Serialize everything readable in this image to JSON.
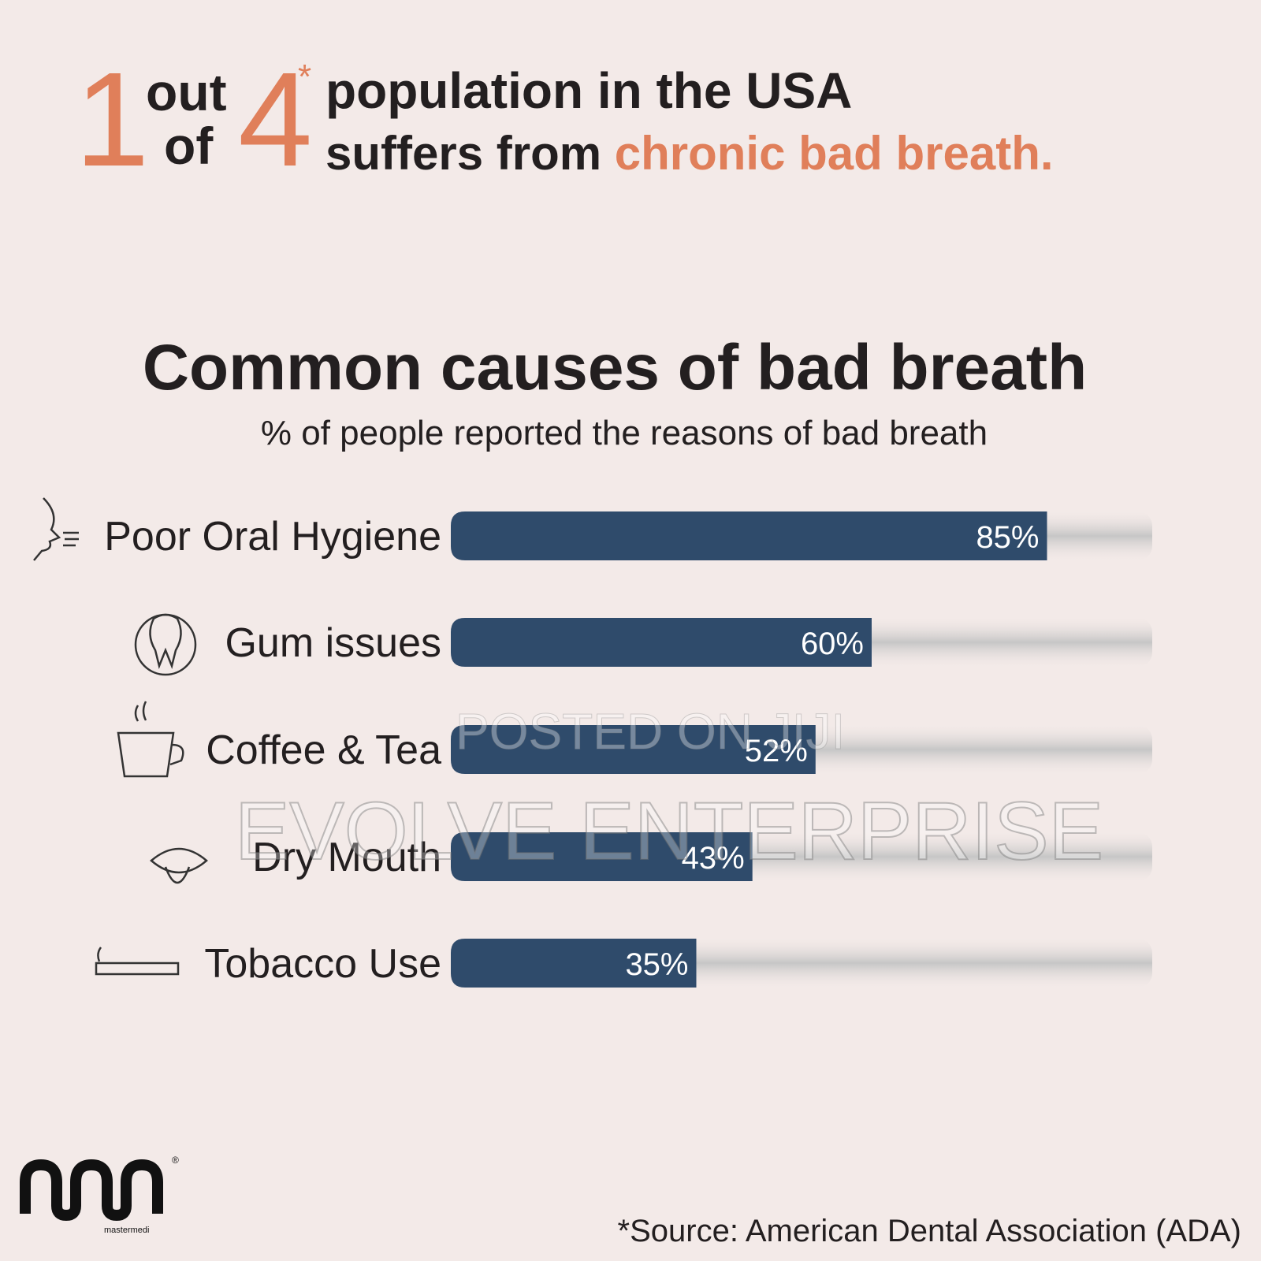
{
  "header": {
    "num1": "1",
    "out": "out",
    "of": "of",
    "num2": "4",
    "asterisk": "*",
    "line1": "population in the USA",
    "line2_start": "suffers from",
    "line2_highlight": "chronic bad breath."
  },
  "chart_data": {
    "type": "bar",
    "orientation": "horizontal",
    "title": "Common causes of bad breath",
    "subtitle": "% of people reported the reasons of bad breath",
    "categories": [
      "Poor Oral Hygiene",
      "Gum issues",
      "Coffee & Tea",
      "Dry Mouth",
      "Tobacco Use"
    ],
    "values": [
      85,
      60,
      52,
      43,
      35
    ],
    "value_labels": [
      "85%",
      "60%",
      "52%",
      "43%",
      "35%"
    ],
    "xlim": [
      0,
      100
    ],
    "color": "#2f4b6b",
    "track_color": "#c6c6c6"
  },
  "watermarks": [
    "POSTED ON JIJI",
    "EVOLVE ENTERPRISE"
  ],
  "logo": {
    "text": "mastermedi",
    "mark": "®"
  },
  "footer": {
    "source": "*Source: American Dental Association (ADA)"
  }
}
